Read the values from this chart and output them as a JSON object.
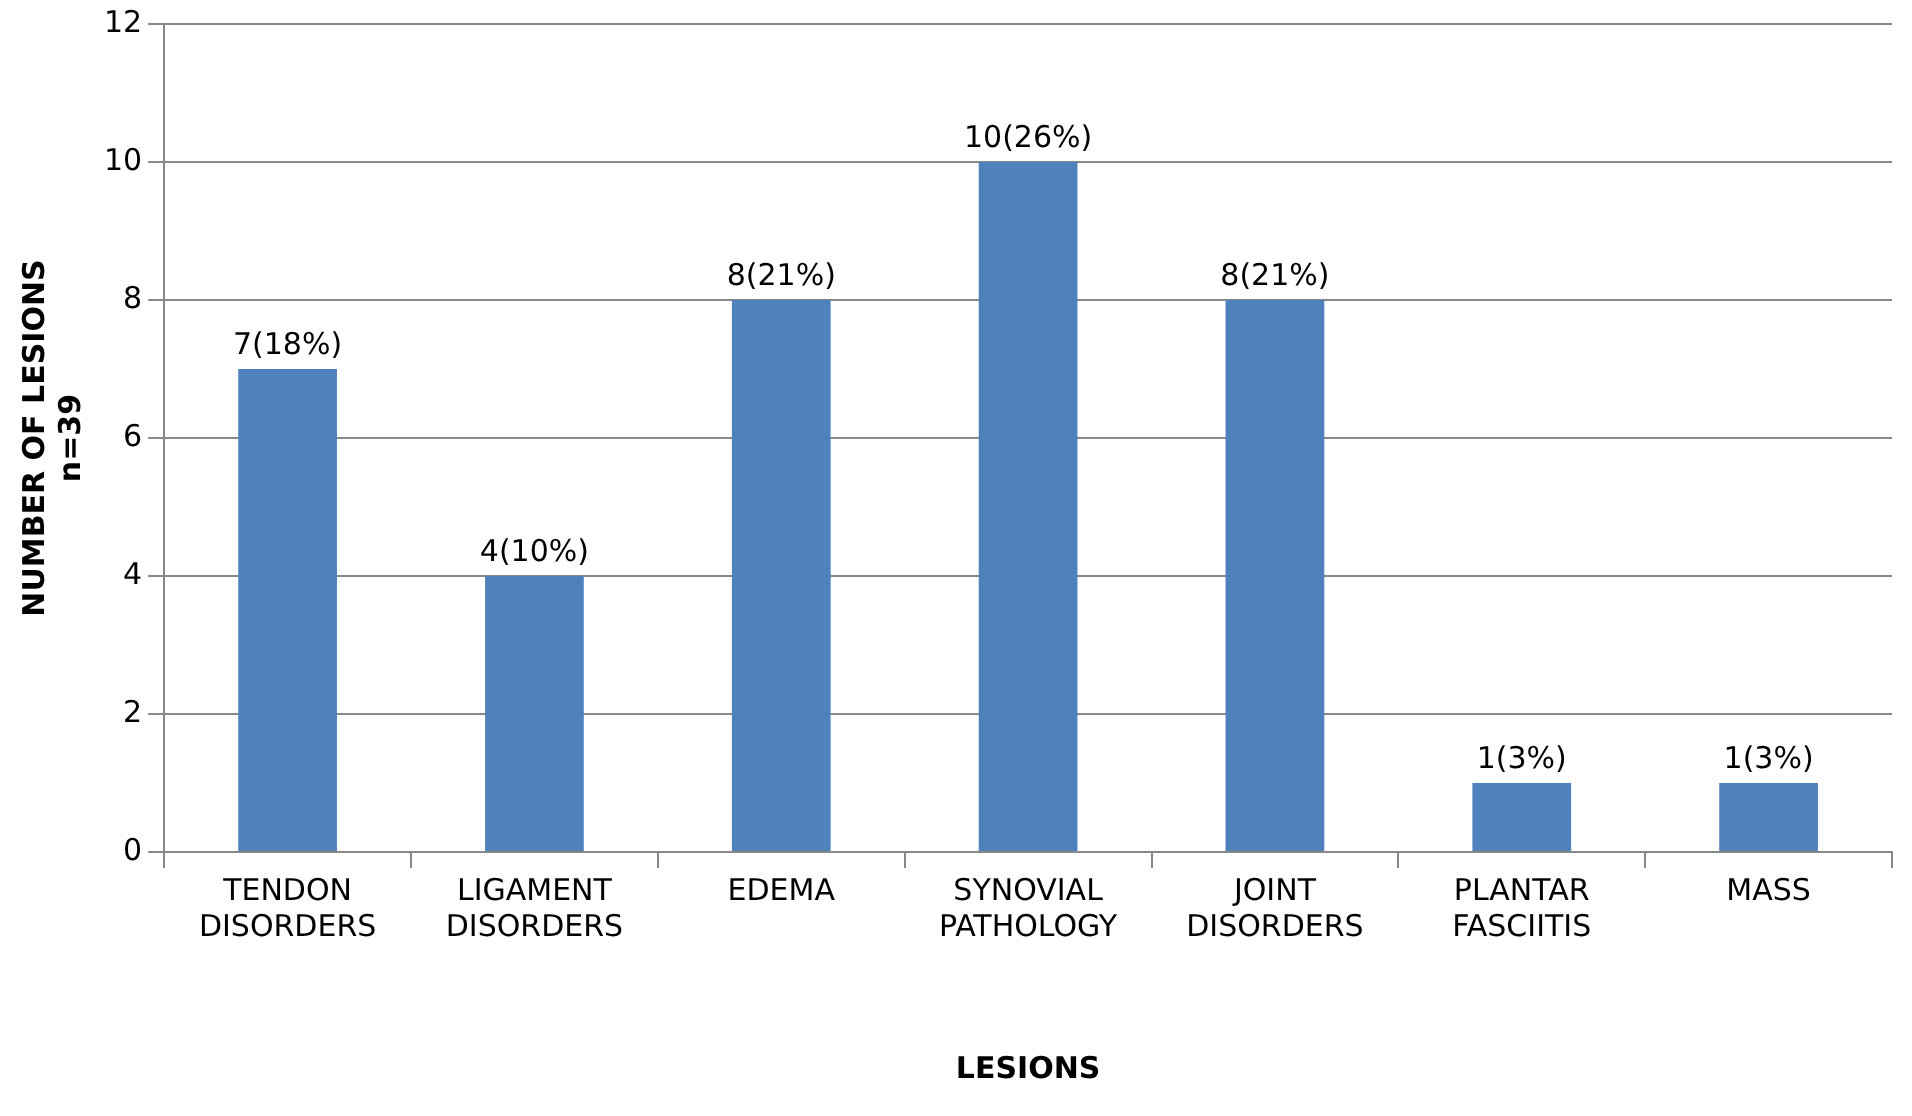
{
  "chart_data": {
    "type": "bar",
    "xlabel": "LESIONS",
    "ylabel": "NUMBER OF LESIONS\nn=39",
    "categories": [
      "TENDON DISORDERS",
      "LIGAMENT DISORDERS",
      "EDEMA",
      "SYNOVIAL PATHOLOGY",
      "JOINT DISORDERS",
      "PLANTAR FASCIITIS",
      "MASS"
    ],
    "values": [
      7,
      4,
      8,
      10,
      8,
      1,
      1
    ],
    "value_labels": [
      "7(18%)",
      "4(10%)",
      "8(21%)",
      "10(26%)",
      "8(21%)",
      "1(3%)",
      "1(3%)"
    ],
    "color": "#4f81bd",
    "ylim": [
      0,
      12
    ],
    "yticks": [
      0,
      2,
      4,
      6,
      8,
      10,
      12
    ],
    "grid": "y",
    "legend": false
  }
}
